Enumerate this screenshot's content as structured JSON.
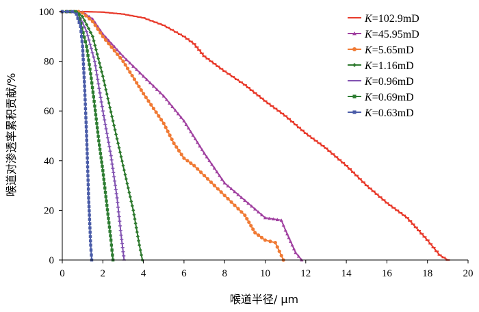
{
  "chart_data": {
    "type": "line",
    "xlabel": "喉道半径/ μm",
    "ylabel": "喉道对渗透率累积贡献/%",
    "xlim": [
      0,
      20
    ],
    "ylim": [
      0,
      100
    ],
    "x_ticks": [
      0,
      2,
      4,
      6,
      8,
      10,
      12,
      14,
      16,
      18,
      20
    ],
    "y_ticks": [
      0,
      20,
      40,
      60,
      80,
      100
    ],
    "grid": false,
    "legend_position": "top-right",
    "series": [
      {
        "name": "K=102.9mD",
        "legend_italic": "K",
        "legend_rest": "=102.9mD",
        "color": "#e8392a",
        "marker": "dash",
        "points": [
          [
            0,
            100
          ],
          [
            1,
            100
          ],
          [
            2,
            99.8
          ],
          [
            3,
            99
          ],
          [
            4,
            97.5
          ],
          [
            5,
            94.5
          ],
          [
            6,
            90
          ],
          [
            6.5,
            87
          ],
          [
            7,
            82
          ],
          [
            8,
            76
          ],
          [
            9,
            70.5
          ],
          [
            10,
            64
          ],
          [
            11,
            58
          ],
          [
            12,
            51
          ],
          [
            13,
            45
          ],
          [
            14,
            38
          ],
          [
            15,
            30
          ],
          [
            16,
            23
          ],
          [
            17,
            17
          ],
          [
            18,
            8
          ],
          [
            18.6,
            2
          ],
          [
            19,
            0
          ]
        ]
      },
      {
        "name": "K=45.95mD",
        "legend_italic": "K",
        "legend_rest": "=45.95mD",
        "color": "#a040a0",
        "marker": "triangle",
        "points": [
          [
            0,
            100
          ],
          [
            0.8,
            100
          ],
          [
            1,
            99.8
          ],
          [
            1.5,
            97
          ],
          [
            2,
            91
          ],
          [
            3,
            82
          ],
          [
            4,
            74
          ],
          [
            5,
            66
          ],
          [
            6,
            56
          ],
          [
            7,
            43
          ],
          [
            8,
            31
          ],
          [
            9,
            24
          ],
          [
            10,
            17
          ],
          [
            10.8,
            16
          ],
          [
            11,
            12
          ],
          [
            11.5,
            3
          ],
          [
            11.8,
            0
          ]
        ]
      },
      {
        "name": "K=5.65mD",
        "legend_italic": "K",
        "legend_rest": "=5.65mD",
        "color": "#f07a34",
        "marker": "circle",
        "points": [
          [
            0,
            100
          ],
          [
            0.8,
            100
          ],
          [
            1,
            99.5
          ],
          [
            1.5,
            96
          ],
          [
            2,
            90
          ],
          [
            3,
            80
          ],
          [
            4,
            67
          ],
          [
            5,
            55
          ],
          [
            5.5,
            47
          ],
          [
            6,
            41
          ],
          [
            6.5,
            38
          ],
          [
            7,
            34
          ],
          [
            8,
            26
          ],
          [
            9,
            18
          ],
          [
            9.5,
            11
          ],
          [
            10,
            8
          ],
          [
            10.5,
            7
          ],
          [
            10.9,
            0
          ]
        ]
      },
      {
        "name": "K=1.16mD",
        "legend_italic": "K",
        "legend_rest": "=1.16mD",
        "color": "#2f7a2f",
        "marker": "diamond",
        "points": [
          [
            0,
            100
          ],
          [
            0.7,
            100
          ],
          [
            1,
            98
          ],
          [
            1.5,
            90
          ],
          [
            2,
            74
          ],
          [
            2.5,
            56
          ],
          [
            3,
            38
          ],
          [
            3.5,
            20
          ],
          [
            3.8,
            6
          ],
          [
            3.95,
            0
          ]
        ]
      },
      {
        "name": "K=0.96mD",
        "legend_italic": "K",
        "legend_rest": "=0.96mD",
        "color": "#8050b0",
        "marker": "plus",
        "points": [
          [
            0,
            100
          ],
          [
            0.6,
            100
          ],
          [
            0.8,
            99
          ],
          [
            1.2,
            92
          ],
          [
            1.6,
            80
          ],
          [
            2,
            60
          ],
          [
            2.4,
            42
          ],
          [
            2.7,
            25
          ],
          [
            2.9,
            10
          ],
          [
            3.05,
            0
          ]
        ]
      },
      {
        "name": "K=0.69mD",
        "legend_italic": "K",
        "legend_rest": "=0.69mD",
        "color": "#2e7d32",
        "marker": "square",
        "points": [
          [
            0,
            100
          ],
          [
            0.6,
            100
          ],
          [
            0.8,
            99
          ],
          [
            1.2,
            86
          ],
          [
            1.4,
            75
          ],
          [
            1.6,
            62
          ],
          [
            1.8,
            48
          ],
          [
            2,
            36
          ],
          [
            2.2,
            22
          ],
          [
            2.4,
            8
          ],
          [
            2.5,
            0
          ]
        ]
      },
      {
        "name": "K=0.63mD",
        "legend_italic": "K",
        "legend_rest": "=0.63mD",
        "color": "#4a5ca8",
        "marker": "square",
        "points": [
          [
            0,
            100
          ],
          [
            0.5,
            100
          ],
          [
            0.7,
            99
          ],
          [
            0.9,
            94
          ],
          [
            1,
            86
          ],
          [
            1.1,
            70
          ],
          [
            1.2,
            50
          ],
          [
            1.3,
            25
          ],
          [
            1.4,
            6
          ],
          [
            1.45,
            0
          ]
        ]
      }
    ]
  }
}
